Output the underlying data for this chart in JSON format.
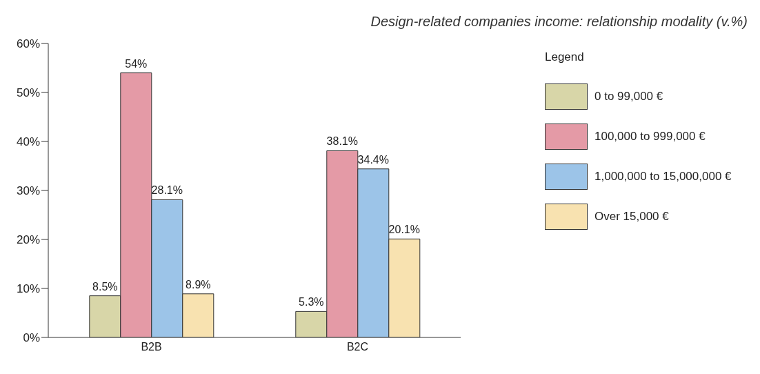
{
  "chart_data": {
    "type": "bar",
    "title": "Design-related companies income: relationship modality (v.%)",
    "categories": [
      "B2B",
      "B2C"
    ],
    "series": [
      {
        "name": "0 to 99,000 €",
        "color": "#d8d6a8",
        "values": [
          8.5,
          5.3
        ],
        "value_labels": [
          "8.5%",
          "5.3%"
        ]
      },
      {
        "name": "100,000 to 999,000 €",
        "color": "#e49aa6",
        "values": [
          54,
          38.1
        ],
        "value_labels": [
          "54%",
          "38.1%"
        ]
      },
      {
        "name": "1,000,000 to 15,000,000 €",
        "color": "#9cc4e8",
        "values": [
          28.1,
          34.4
        ],
        "value_labels": [
          "28.1%",
          "34.4%"
        ]
      },
      {
        "name": "Over 15,000 €",
        "color": "#f8e2b0",
        "values": [
          8.9,
          20.1
        ],
        "value_labels": [
          "8.9%",
          "20.1%"
        ]
      }
    ],
    "ylim": [
      0,
      60
    ],
    "yticks": [
      {
        "value": 0,
        "label": "0%"
      },
      {
        "value": 10,
        "label": "10%"
      },
      {
        "value": 20,
        "label": "20%"
      },
      {
        "value": 30,
        "label": "30%"
      },
      {
        "value": 40,
        "label": "40%"
      },
      {
        "value": 50,
        "label": "50%"
      },
      {
        "value": 60,
        "label": "60%"
      }
    ],
    "grid": false,
    "legend": "right",
    "legend_title": "Legend"
  }
}
